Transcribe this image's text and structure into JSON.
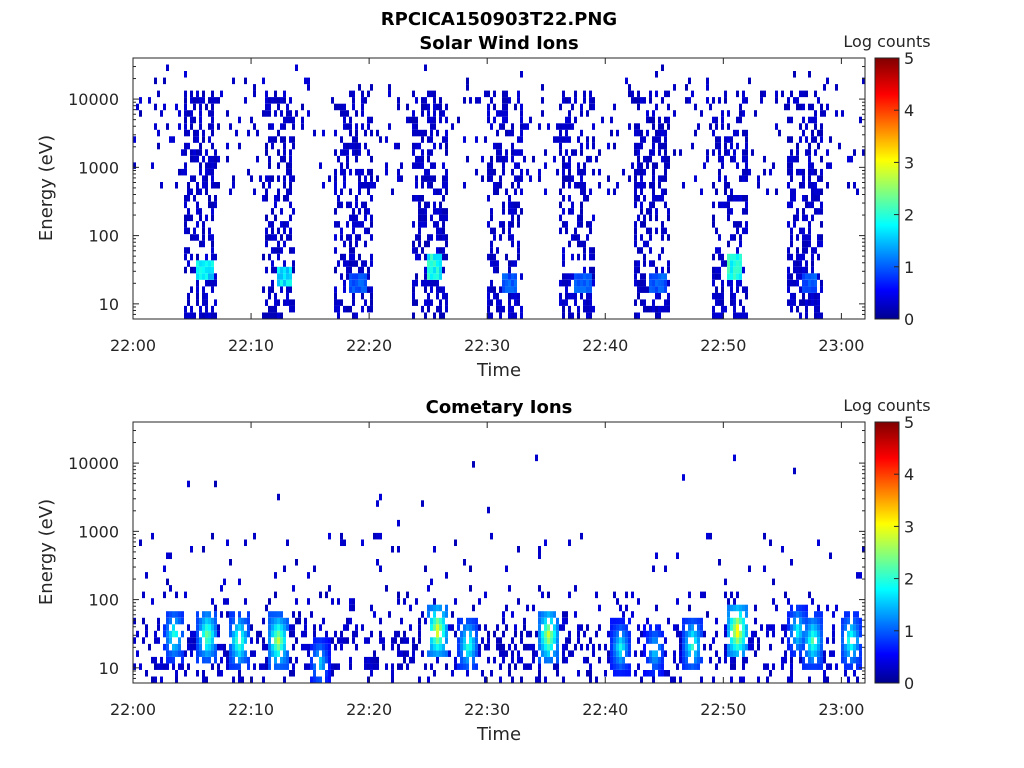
{
  "figure_title": "RPCICA150903T22.PNG",
  "colors": {
    "axis": "#262626",
    "colormap": "jet"
  },
  "chart_data": [
    {
      "type": "heatmap",
      "title": "Solar Wind Ions",
      "xlabel": "Time",
      "ylabel": "Energy (eV)",
      "x_ticks": [
        "22:00",
        "22:10",
        "22:20",
        "22:30",
        "22:40",
        "22:50",
        "23:00"
      ],
      "x_tick_minutes": [
        0,
        10,
        20,
        30,
        40,
        50,
        60
      ],
      "xlim_minutes": [
        0,
        62
      ],
      "y_ticks": [
        "10",
        "100",
        "1000",
        "10000"
      ],
      "y_tick_values": [
        10,
        100,
        1000,
        10000
      ],
      "ylim": [
        6,
        40000
      ],
      "y_scale": "log",
      "colorbar": {
        "label": "Log counts",
        "ticks": [
          "0",
          "1",
          "2",
          "3",
          "4",
          "5"
        ],
        "range": [
          0,
          5
        ]
      },
      "bursts": [
        {
          "start_min": 4.3,
          "end_min": 7.2,
          "peak_energy_ev": 30,
          "peak_log_counts": 2.0
        },
        {
          "start_min": 11.0,
          "end_min": 13.8,
          "peak_energy_ev": 25,
          "peak_log_counts": 2.0
        },
        {
          "start_min": 17.0,
          "end_min": 20.3,
          "peak_energy_ev": 20,
          "peak_log_counts": 1.2
        },
        {
          "start_min": 23.7,
          "end_min": 26.6,
          "peak_energy_ev": 35,
          "peak_log_counts": 2.2
        },
        {
          "start_min": 29.9,
          "end_min": 33.0,
          "peak_energy_ev": 20,
          "peak_log_counts": 1.2
        },
        {
          "start_min": 36.2,
          "end_min": 39.2,
          "peak_energy_ev": 20,
          "peak_log_counts": 1.2
        },
        {
          "start_min": 42.5,
          "end_min": 45.6,
          "peak_energy_ev": 20,
          "peak_log_counts": 1.2
        },
        {
          "start_min": 49.0,
          "end_min": 52.0,
          "peak_energy_ev": 35,
          "peak_log_counts": 2.3
        },
        {
          "start_min": 55.4,
          "end_min": 58.4,
          "peak_energy_ev": 20,
          "peak_log_counts": 1.2
        }
      ]
    },
    {
      "type": "heatmap",
      "title": "Cometary Ions",
      "xlabel": "Time",
      "ylabel": "Energy (eV)",
      "x_ticks": [
        "22:00",
        "22:10",
        "22:20",
        "22:30",
        "22:40",
        "22:50",
        "23:00"
      ],
      "x_tick_minutes": [
        0,
        10,
        20,
        30,
        40,
        50,
        60
      ],
      "xlim_minutes": [
        0,
        62
      ],
      "y_ticks": [
        "10",
        "100",
        "1000",
        "10000"
      ],
      "y_tick_values": [
        10,
        100,
        1000,
        10000
      ],
      "ylim": [
        6,
        40000
      ],
      "y_scale": "log",
      "colorbar": {
        "label": "Log counts",
        "ticks": [
          "0",
          "1",
          "2",
          "3",
          "4",
          "5"
        ],
        "range": [
          0,
          5
        ]
      },
      "hotspots": [
        {
          "t_min": 3.5,
          "energy_ev": 30,
          "log_counts": 2.2
        },
        {
          "t_min": 6.3,
          "energy_ev": 30,
          "log_counts": 2.6
        },
        {
          "t_min": 9.0,
          "energy_ev": 25,
          "log_counts": 2.5
        },
        {
          "t_min": 12.3,
          "energy_ev": 25,
          "log_counts": 2.9
        },
        {
          "t_min": 15.8,
          "energy_ev": 12,
          "log_counts": 1.8
        },
        {
          "t_min": 25.8,
          "energy_ev": 35,
          "log_counts": 3.2
        },
        {
          "t_min": 28.4,
          "energy_ev": 22,
          "log_counts": 2.3
        },
        {
          "t_min": 35.2,
          "energy_ev": 30,
          "log_counts": 3.0
        },
        {
          "t_min": 41.3,
          "energy_ev": 20,
          "log_counts": 2.0
        },
        {
          "t_min": 44.2,
          "energy_ev": 18,
          "log_counts": 1.8
        },
        {
          "t_min": 47.4,
          "energy_ev": 22,
          "log_counts": 2.3
        },
        {
          "t_min": 51.2,
          "energy_ev": 35,
          "log_counts": 3.4
        },
        {
          "t_min": 56.3,
          "energy_ev": 35,
          "log_counts": 2.0
        },
        {
          "t_min": 57.6,
          "energy_ev": 25,
          "log_counts": 2.4
        },
        {
          "t_min": 60.8,
          "energy_ev": 25,
          "log_counts": 2.3
        }
      ]
    }
  ]
}
